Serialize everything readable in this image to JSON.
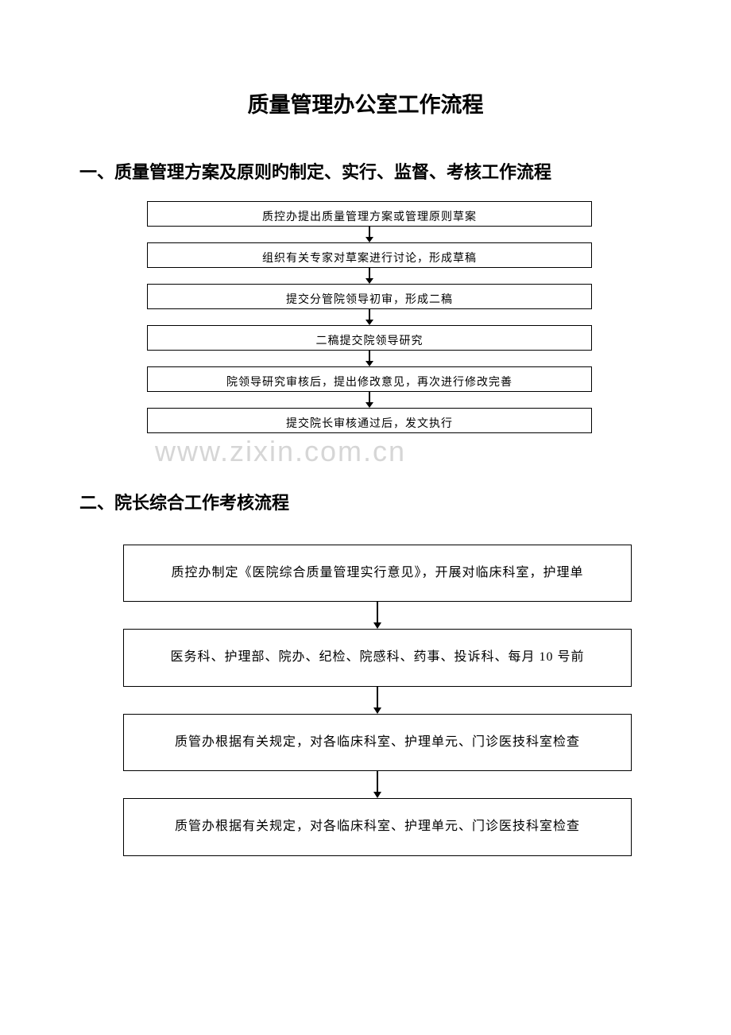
{
  "page": {
    "title": "质量管理办公室工作流程",
    "background_color": "#ffffff",
    "text_color": "#000000"
  },
  "section1": {
    "title": "一、质量管理方案及原则旳制定、实行、监督、考核工作流程",
    "steps": [
      "质控办提出质量管理方案或管理原则草案",
      "组织有关专家对草案进行讨论，形成草稿",
      "提交分管院领导初审，形成二稿",
      "二稿提交院领导研究",
      "院领导研究审核后，提出修改意见，再次进行修改完善",
      "提交院长审核通过后，发文执行"
    ],
    "box_style": {
      "border_color": "#000000",
      "border_width": 1,
      "font_size": 14,
      "height": 32
    },
    "watermark": "www.zixin.com.cn",
    "watermark_color": "#d6d6d6"
  },
  "section2": {
    "title": "二、院长综合工作考核流程",
    "steps": [
      "质控办制定《医院综合质量管理实行意见》，开展对临床科室，护理单",
      "医务科、护理部、院办、纪检、院感科、药事、投诉科、每月 10 号前",
      "质管办根据有关规定，对各临床科室、护理单元、门诊医技科室检查",
      "质管办根据有关规定，对各临床科室、护理单元、门诊医技科室检查"
    ],
    "box_style": {
      "border_color": "#000000",
      "border_width": 1,
      "font_size": 16
    }
  }
}
